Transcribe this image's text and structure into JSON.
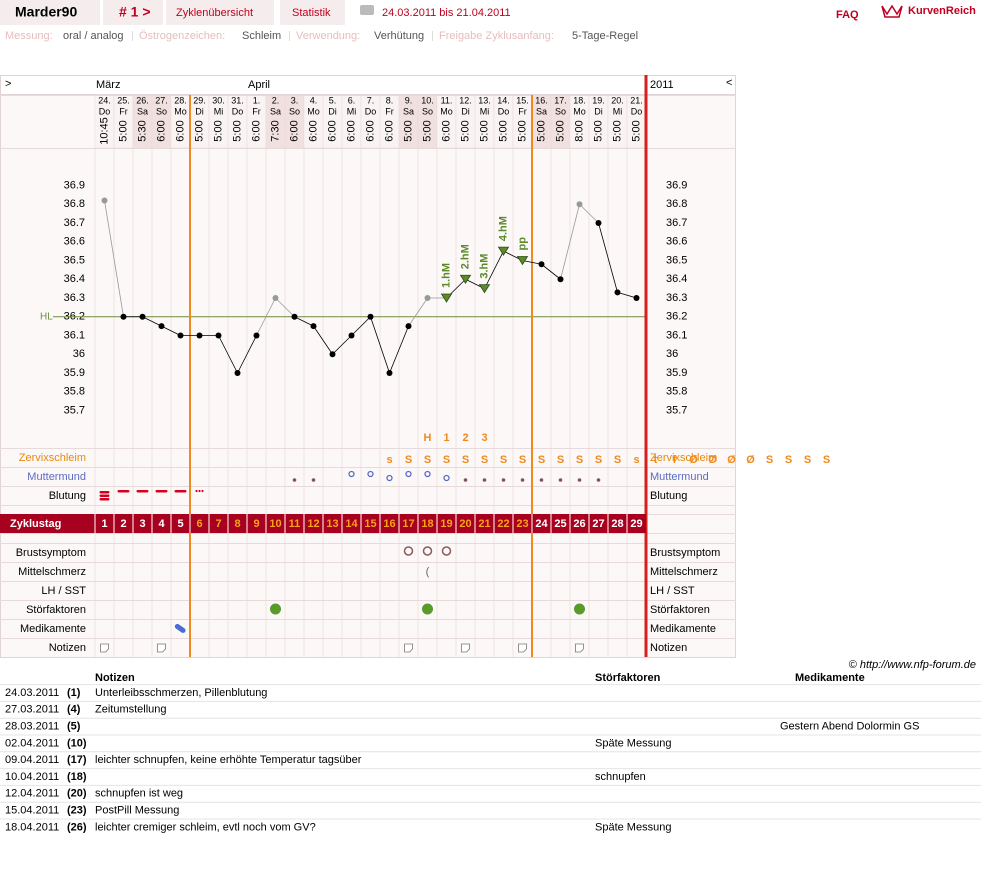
{
  "header": {
    "user": "Marder90",
    "cycle_nav": "# 1 >",
    "tabs": [
      "Zyklenübersicht",
      "Statistik"
    ],
    "date_range": "24.03.2011 bis 21.04.2011",
    "faq": "FAQ",
    "brand": "KurvenReich"
  },
  "settings": [
    {
      "label": "Messung:",
      "value": "oral / analog"
    },
    {
      "label": "Östrogenzeichen:",
      "value": "Schleim"
    },
    {
      "label": "Verwendung:",
      "value": "Verhütung"
    },
    {
      "label": "Freigabe Zyklusanfang:",
      "value": "5-Tage-Regel"
    }
  ],
  "chart_data": {
    "type": "line",
    "nav_prev": ">",
    "nav_next": "<",
    "year": "2011",
    "month_labels": [
      "März",
      null,
      null,
      null,
      null,
      null,
      null,
      null,
      "April",
      null,
      null,
      null,
      null,
      null,
      null,
      null,
      null,
      null,
      null,
      null,
      null,
      null,
      null,
      null,
      null,
      null,
      null,
      null,
      null
    ],
    "categories": [
      "24.",
      "25.",
      "26.",
      "27.",
      "28.",
      "29.",
      "30.",
      "31.",
      "1.",
      "2.",
      "3.",
      "4.",
      "5.",
      "6.",
      "7.",
      "8.",
      "9.",
      "10.",
      "11.",
      "12.",
      "13.",
      "14.",
      "15.",
      "16.",
      "17.",
      "18.",
      "19.",
      "20.",
      "21."
    ],
    "weekdays": [
      "Do",
      "Fr",
      "Sa",
      "So",
      "Mo",
      "Di",
      "Mi",
      "Do",
      "Fr",
      "Sa",
      "So",
      "Mo",
      "Di",
      "Mi",
      "Do",
      "Fr",
      "Sa",
      "So",
      "Mo",
      "Di",
      "Mi",
      "Do",
      "Fr",
      "Sa",
      "So",
      "Mo",
      "Di",
      "Mi",
      "Do"
    ],
    "times": [
      "10:45",
      "5:00",
      "5:30",
      "6:00",
      "6:00",
      "5:00",
      "5:00",
      "5:00",
      "6:00",
      "7:30",
      "6:00",
      "6:00",
      "6:00",
      "6:00",
      "6:00",
      "6:00",
      "5:00",
      "5:00",
      "6:00",
      "5:00",
      "5:00",
      "5:00",
      "5:00",
      "5:00",
      "5:00",
      "8:00",
      "5:00",
      "5:00",
      "5:00"
    ],
    "values": [
      36.82,
      36.2,
      36.2,
      36.15,
      36.1,
      36.1,
      36.1,
      35.9,
      36.1,
      36.3,
      36.2,
      36.15,
      36,
      36.1,
      36.2,
      35.9,
      36.15,
      36.3,
      36.3,
      36.4,
      36.35,
      36.55,
      36.5,
      36.48,
      36.4,
      36.8,
      36.7,
      36.33,
      36.3
    ],
    "point_colors": [
      "#999999",
      "#000000",
      "#000000",
      "#000000",
      "#000000",
      "#000000",
      "#000000",
      "#000000",
      "#000000",
      "#999999",
      "#000000",
      "#000000",
      "#000000",
      "#000000",
      "#000000",
      "#000000",
      "#000000",
      "#999999",
      "#000000",
      "#000000",
      "#000000",
      "#000000",
      "#000000",
      "#000000",
      "#000000",
      "#999999",
      "#000000",
      "#000000",
      "#000000"
    ],
    "point_labels": [
      null,
      null,
      null,
      null,
      null,
      null,
      null,
      null,
      null,
      null,
      null,
      null,
      null,
      null,
      null,
      null,
      null,
      null,
      "1.hM",
      "2.hM",
      "3.hM",
      "4.hM",
      "pp",
      null,
      null,
      null,
      null,
      null,
      null
    ],
    "marker_color": "#5c8a2a",
    "ylim": [
      35.5,
      37.1
    ],
    "yticks": [
      35.7,
      35.8,
      35.9,
      36,
      36.1,
      36.2,
      36.3,
      36.4,
      36.5,
      36.6,
      36.7,
      36.8,
      36.9
    ],
    "coverline": {
      "label": "HL",
      "value": 36.2,
      "color": "#6b8e3a"
    },
    "mucus": [
      "s",
      "S",
      "S",
      "S",
      "S",
      "S",
      "S",
      "S",
      "S",
      "S",
      "S",
      "S",
      "S",
      "s",
      "t",
      "f",
      "Ø",
      "Ø",
      "Ø",
      "Ø",
      "S",
      "S",
      "S",
      "S"
    ],
    "mucus_start_day": "8.",
    "mucus_marks": [
      null,
      null,
      null,
      null,
      null,
      null,
      null,
      null,
      null,
      null,
      null,
      null,
      null,
      null,
      null,
      null,
      null,
      "H",
      "1",
      "2",
      "3",
      null,
      null,
      null,
      null,
      null,
      null,
      null,
      null
    ],
    "row_labels": {
      "mucus": "Zervixschleim",
      "cervix": "Muttermund",
      "bleeding": "Blutung",
      "cycle_day": "Zyklustag",
      "breast": "Brustsymptom",
      "pain": "Mittelschmerz",
      "lh": "LH / SST",
      "disturb": "Störfaktoren",
      "meds": "Medikamente",
      "notes": "Notizen"
    },
    "cycle_days": [
      "1",
      "2",
      "3",
      "4",
      "5",
      "6",
      "7",
      "8",
      "9",
      "10",
      "11",
      "12",
      "13",
      "14",
      "15",
      "16",
      "17",
      "18",
      "19",
      "20",
      "21",
      "22",
      "23",
      "24",
      "25",
      "26",
      "27",
      "28",
      "29"
    ]
  },
  "footer": {
    "copyright": "© http://www.nfp-forum.de"
  },
  "notes": {
    "headers": [
      "Notizen",
      "Störfaktoren",
      "Medikamente"
    ],
    "rows": [
      [
        "24.03.2011",
        "(1)",
        "Unterleibsschmerzen, Pillenblutung",
        null,
        null
      ],
      [
        "27.03.2011",
        "(4)",
        "Zeitumstellung",
        null,
        null
      ],
      [
        "28.03.2011",
        "(5)",
        null,
        null,
        "Gestern Abend Dolormin GS"
      ],
      [
        "02.04.2011",
        "(10)",
        null,
        "Späte Messung",
        null
      ],
      [
        "09.04.2011",
        "(17)",
        "leichter schnupfen, keine erhöhte Temperatur tagsüber",
        null,
        null
      ],
      [
        "10.04.2011",
        "(18)",
        null,
        "schnupfen",
        null
      ],
      [
        "12.04.2011",
        "(20)",
        "schnupfen ist weg",
        null,
        null
      ],
      [
        "15.04.2011",
        "(23)",
        "PostPill Messung",
        null,
        null
      ],
      [
        "18.04.2011",
        "(26)",
        "leichter cremiger schleim, evtl noch vom GV?",
        "Späte Messung",
        null
      ]
    ]
  }
}
